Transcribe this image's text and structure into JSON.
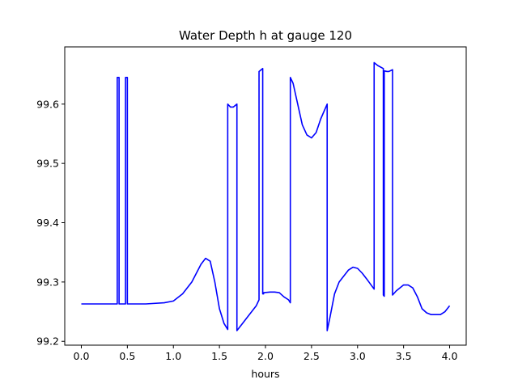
{
  "chart_data": {
    "type": "line",
    "title": "Water Depth h at gauge 120",
    "xlabel": "hours",
    "ylabel": "",
    "xlim": [
      -0.18,
      4.18
    ],
    "ylim": [
      99.1935,
      99.6965
    ],
    "xticks": [
      0.0,
      0.5,
      1.0,
      1.5,
      2.0,
      2.5,
      3.0,
      3.5,
      4.0
    ],
    "xtick_labels": [
      "0.0",
      "0.5",
      "1.0",
      "1.5",
      "2.0",
      "2.5",
      "3.0",
      "3.5",
      "4.0"
    ],
    "yticks": [
      99.2,
      99.3,
      99.4,
      99.5,
      99.6
    ],
    "ytick_labels": [
      "99.2",
      "99.3",
      "99.4",
      "99.5",
      "99.6"
    ],
    "grid": false,
    "line_color": "#0000ff",
    "series": [
      {
        "x": [
          0.0,
          0.2,
          0.39,
          0.39,
          0.41,
          0.41,
          0.48,
          0.48,
          0.5,
          0.5,
          0.7,
          0.9,
          1.0,
          1.1,
          1.2,
          1.3,
          1.35,
          1.4,
          1.45,
          1.5,
          1.55,
          1.59,
          1.59,
          1.62,
          1.65,
          1.69,
          1.69,
          1.75,
          1.8,
          1.9,
          1.93,
          1.93,
          1.97,
          1.97,
          1.98,
          1.98,
          2.05,
          2.1,
          2.15,
          2.2,
          2.25,
          2.27,
          2.27,
          2.3,
          2.35,
          2.4,
          2.45,
          2.5,
          2.55,
          2.6,
          2.67,
          2.67,
          2.7,
          2.75,
          2.8,
          2.9,
          2.95,
          3.0,
          3.05,
          3.1,
          3.18,
          3.18,
          3.22,
          3.28,
          3.28,
          3.29,
          3.29,
          3.32,
          3.34,
          3.38,
          3.38,
          3.42,
          3.5,
          3.55,
          3.6,
          3.65,
          3.7,
          3.75,
          3.8,
          3.9,
          3.95,
          4.0
        ],
        "y": [
          99.263,
          99.263,
          99.263,
          99.645,
          99.645,
          99.263,
          99.263,
          99.645,
          99.645,
          99.263,
          99.263,
          99.265,
          99.268,
          99.28,
          99.3,
          99.33,
          99.34,
          99.335,
          99.3,
          99.255,
          99.23,
          99.22,
          99.6,
          99.595,
          99.595,
          99.6,
          99.218,
          99.23,
          99.24,
          99.26,
          99.27,
          99.655,
          99.66,
          99.28,
          99.28,
          99.282,
          99.283,
          99.283,
          99.282,
          99.275,
          99.27,
          99.265,
          99.645,
          99.635,
          99.6,
          99.565,
          99.548,
          99.543,
          99.552,
          99.575,
          99.6,
          99.218,
          99.24,
          99.28,
          99.3,
          99.32,
          99.325,
          99.323,
          99.315,
          99.305,
          99.288,
          99.67,
          99.665,
          99.66,
          99.278,
          99.276,
          99.656,
          99.655,
          99.655,
          99.658,
          99.278,
          99.285,
          99.295,
          99.295,
          99.29,
          99.275,
          99.255,
          99.248,
          99.245,
          99.245,
          99.25,
          99.26
        ]
      }
    ]
  }
}
